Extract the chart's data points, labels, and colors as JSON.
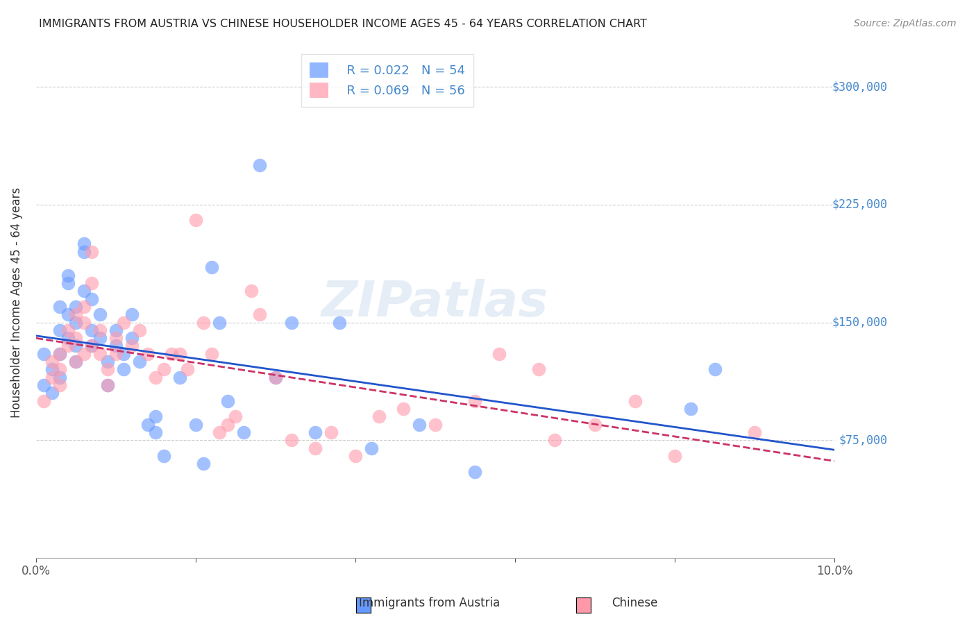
{
  "title": "IMMIGRANTS FROM AUSTRIA VS CHINESE HOUSEHOLDER INCOME AGES 45 - 64 YEARS CORRELATION CHART",
  "source": "Source: ZipAtlas.com",
  "xlabel_bottom": "",
  "ylabel": "Householder Income Ages 45 - 64 years",
  "legend_austria": "Immigrants from Austria",
  "legend_chinese": "Chinese",
  "legend_r_austria": "R = 0.022",
  "legend_n_austria": "N = 54",
  "legend_r_chinese": "R = 0.069",
  "legend_n_chinese": "N = 56",
  "xlim": [
    0.0,
    0.1
  ],
  "ylim": [
    0,
    325000
  ],
  "yticks": [
    0,
    75000,
    150000,
    225000,
    300000
  ],
  "ytick_labels": [
    "",
    "$75,000",
    "$150,000",
    "$225,000",
    "$300,000"
  ],
  "xticks": [
    0.0,
    0.02,
    0.04,
    0.06,
    0.08,
    0.1
  ],
  "xtick_labels": [
    "0.0%",
    "",
    "",
    "",
    "",
    "10.0%"
  ],
  "color_austria": "#6699ff",
  "color_chinese": "#ff99aa",
  "line_color_austria": "#2255cc",
  "line_color_chinese": "#cc3366",
  "watermark": "ZIPatlas",
  "austria_x": [
    0.001,
    0.001,
    0.002,
    0.002,
    0.003,
    0.003,
    0.003,
    0.003,
    0.004,
    0.004,
    0.004,
    0.004,
    0.005,
    0.005,
    0.005,
    0.005,
    0.006,
    0.006,
    0.006,
    0.007,
    0.007,
    0.007,
    0.008,
    0.008,
    0.009,
    0.009,
    0.01,
    0.01,
    0.011,
    0.011,
    0.012,
    0.012,
    0.013,
    0.014,
    0.015,
    0.015,
    0.016,
    0.018,
    0.02,
    0.021,
    0.022,
    0.023,
    0.024,
    0.026,
    0.028,
    0.03,
    0.032,
    0.035,
    0.038,
    0.042,
    0.048,
    0.055,
    0.082,
    0.085
  ],
  "austria_y": [
    130000,
    110000,
    120000,
    105000,
    145000,
    160000,
    130000,
    115000,
    180000,
    175000,
    155000,
    140000,
    160000,
    150000,
    135000,
    125000,
    200000,
    195000,
    170000,
    165000,
    145000,
    135000,
    155000,
    140000,
    125000,
    110000,
    145000,
    135000,
    130000,
    120000,
    155000,
    140000,
    125000,
    85000,
    90000,
    80000,
    65000,
    115000,
    85000,
    60000,
    185000,
    150000,
    100000,
    80000,
    250000,
    115000,
    150000,
    80000,
    150000,
    70000,
    85000,
    55000,
    95000,
    120000
  ],
  "chinese_x": [
    0.001,
    0.002,
    0.002,
    0.003,
    0.003,
    0.003,
    0.004,
    0.004,
    0.005,
    0.005,
    0.005,
    0.006,
    0.006,
    0.006,
    0.007,
    0.007,
    0.007,
    0.008,
    0.008,
    0.009,
    0.009,
    0.01,
    0.01,
    0.011,
    0.012,
    0.013,
    0.014,
    0.015,
    0.016,
    0.017,
    0.018,
    0.019,
    0.02,
    0.021,
    0.022,
    0.023,
    0.024,
    0.025,
    0.027,
    0.028,
    0.03,
    0.032,
    0.035,
    0.037,
    0.04,
    0.043,
    0.046,
    0.05,
    0.055,
    0.058,
    0.063,
    0.065,
    0.07,
    0.075,
    0.08,
    0.09
  ],
  "chinese_y": [
    100000,
    125000,
    115000,
    130000,
    120000,
    110000,
    145000,
    135000,
    155000,
    140000,
    125000,
    160000,
    150000,
    130000,
    175000,
    195000,
    135000,
    145000,
    130000,
    120000,
    110000,
    140000,
    130000,
    150000,
    135000,
    145000,
    130000,
    115000,
    120000,
    130000,
    130000,
    120000,
    215000,
    150000,
    130000,
    80000,
    85000,
    90000,
    170000,
    155000,
    115000,
    75000,
    70000,
    80000,
    65000,
    90000,
    95000,
    85000,
    100000,
    130000,
    120000,
    75000,
    85000,
    100000,
    65000,
    80000
  ]
}
